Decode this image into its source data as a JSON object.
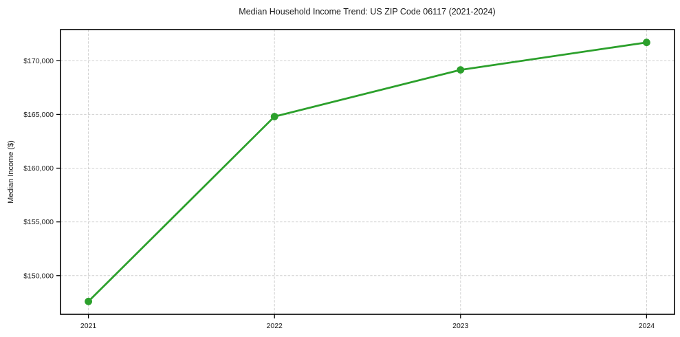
{
  "chart_data": {
    "type": "line",
    "title": "Median Household Income Trend: US ZIP Code 06117 (2021-2024)",
    "xlabel": "",
    "ylabel": "Median Income ($)",
    "x": [
      2021,
      2022,
      2023,
      2024
    ],
    "series": [
      {
        "name": "Median Household Income",
        "values": [
          147600,
          164800,
          169150,
          171700
        ],
        "color": "#2ca02c",
        "marker": "circle"
      }
    ],
    "x_ticks": [
      {
        "value": 2021,
        "label": "2021"
      },
      {
        "value": 2022,
        "label": "2022"
      },
      {
        "value": 2023,
        "label": "2023"
      },
      {
        "value": 2024,
        "label": "2024"
      }
    ],
    "y_ticks": [
      {
        "value": 150000,
        "label": "$150,000"
      },
      {
        "value": 155000,
        "label": "$155,000"
      },
      {
        "value": 160000,
        "label": "$160,000"
      },
      {
        "value": 165000,
        "label": "$165,000"
      },
      {
        "value": 170000,
        "label": "$170,000"
      }
    ],
    "xlim": [
      2020.85,
      2024.15
    ],
    "ylim": [
      146400,
      172900
    ],
    "grid": "dashed-both-axes",
    "grid_color": "#cfcfcf",
    "legend": "none",
    "background": "#ffffff"
  }
}
